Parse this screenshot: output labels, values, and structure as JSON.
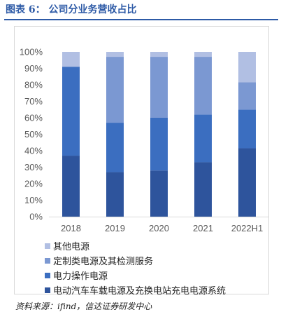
{
  "title": "图表 6： 公司分业务营收占比",
  "source": "资料来源：ifind，信达证券研发中心",
  "colors": [
    "#2e549c",
    "#3b6ec0",
    "#7b98d2",
    "#b1bfe3"
  ],
  "chart_data": {
    "type": "bar",
    "stacked": true,
    "categories": [
      "2018",
      "2019",
      "2020",
      "2021",
      "2022H1"
    ],
    "y_ticks": [
      "0%",
      "10%",
      "20%",
      "30%",
      "40%",
      "50%",
      "60%",
      "70%",
      "80%",
      "90%",
      "100%"
    ],
    "ylim": [
      0,
      100
    ],
    "grid": false,
    "legend_position": "bottom",
    "series": [
      {
        "name": "电动汽车车载电源及充换电站充电电源系统",
        "values": [
          37,
          27,
          28,
          33,
          41.5
        ]
      },
      {
        "name": "电力操作电源",
        "values": [
          54,
          30,
          32,
          29,
          23.5
        ]
      },
      {
        "name": "定制类电源及其检测服务",
        "values": [
          0,
          40,
          37,
          35,
          16.5
        ]
      },
      {
        "name": "其他电源",
        "values": [
          9,
          3,
          3,
          3,
          18.5
        ]
      }
    ]
  }
}
